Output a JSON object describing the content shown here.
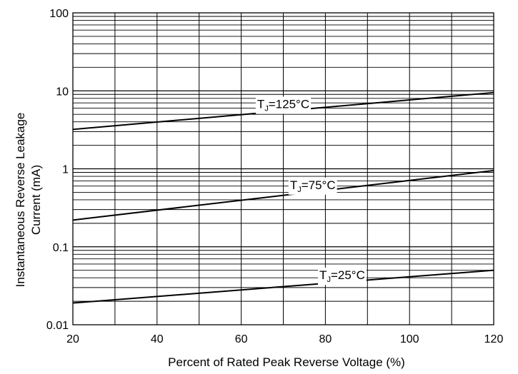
{
  "chart_data": {
    "type": "line",
    "title": "",
    "xlabel": "Percent of Rated Peak Reverse Voltage (%)",
    "ylabel_line1": "Instantaneous Reverse Leakage",
    "ylabel_line2": "Current (mA)",
    "xlim": [
      20,
      120
    ],
    "ylim": [
      0.01,
      100
    ],
    "yscale": "log",
    "grid": true,
    "x_ticks": [
      20,
      40,
      60,
      80,
      100,
      120
    ],
    "x_tick_labels": [
      "20",
      "40",
      "60",
      "80",
      "100",
      "120"
    ],
    "x_minor_grid": [
      30,
      50,
      70,
      90,
      110
    ],
    "y_ticks": [
      0.01,
      0.1,
      1,
      10,
      100
    ],
    "y_tick_labels": [
      "0.01",
      "0.1",
      "1",
      "10",
      "100"
    ],
    "line_color": "#000000",
    "grid_color": "#000000",
    "series": [
      {
        "label_main": "T",
        "label_sub": "J",
        "label_rest": "=125°C",
        "x": [
          20,
          120
        ],
        "values": [
          3.2,
          9.5
        ],
        "label_x": 70
      },
      {
        "label_main": "T",
        "label_sub": "J",
        "label_rest": "=75°C",
        "x": [
          20,
          120
        ],
        "values": [
          0.22,
          0.95
        ],
        "label_x": 77
      },
      {
        "label_main": "T",
        "label_sub": "J",
        "label_rest": "=25°C",
        "x": [
          20,
          120
        ],
        "values": [
          0.019,
          0.05
        ],
        "label_x": 84
      }
    ]
  }
}
